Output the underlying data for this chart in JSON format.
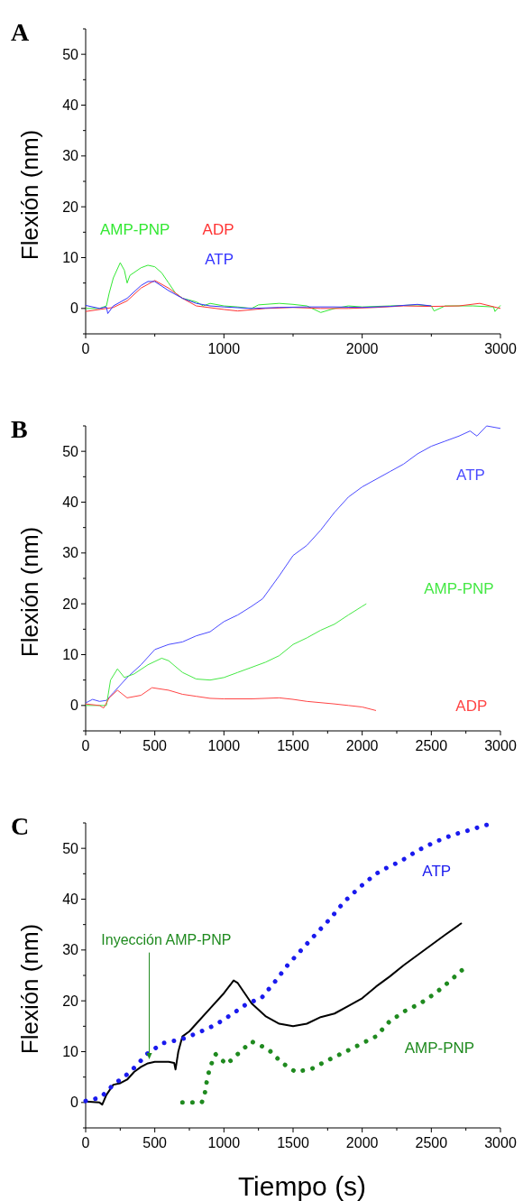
{
  "chart_data": [
    {
      "type": "line",
      "title": "A",
      "ylabel": "Flexión (nm)",
      "xlim": [
        0,
        3000
      ],
      "ylim": [
        -5,
        55
      ],
      "xticks": [
        0,
        {
          "value": 500,
          "label": null
        },
        1000,
        {
          "value": 1500,
          "label": null
        },
        2000,
        {
          "value": 2500,
          "label": null
        },
        3000
      ],
      "yticks": [
        {
          "value": -5,
          "label": null
        },
        0,
        {
          "value": 5,
          "label": null
        },
        10,
        {
          "value": 15,
          "label": null
        },
        20,
        {
          "value": 25,
          "label": null
        },
        30,
        {
          "value": 35,
          "label": null
        },
        40,
        {
          "value": 45,
          "label": null
        },
        50,
        {
          "value": 55,
          "label": null
        }
      ],
      "grid": false,
      "line_style": "solid",
      "marker": "none",
      "series": [
        {
          "name": "AMP-PNP",
          "color": "#33e833",
          "x": [
            0,
            100,
            150,
            170,
            200,
            250,
            280,
            300,
            320,
            400,
            450,
            500,
            550,
            600,
            650,
            700,
            800,
            850,
            900,
            1000,
            1100,
            1200,
            1250,
            1400,
            1500,
            1600,
            1700,
            1800,
            1900,
            2000,
            2200,
            2400,
            2500,
            2520,
            2600,
            2800,
            2950,
            2960,
            3000
          ],
          "values": [
            0,
            0,
            0.5,
            3,
            6,
            9,
            7.5,
            5,
            6.5,
            8,
            8.5,
            8.2,
            7,
            5,
            3,
            2,
            1.3,
            0.5,
            1,
            0.5,
            0.3,
            0,
            0.7,
            1,
            0.8,
            0.5,
            -0.8,
            0,
            0.5,
            0.3,
            0.5,
            0.7,
            0.5,
            -0.5,
            0.5,
            0.5,
            0.3,
            -0.6,
            0.6
          ]
        },
        {
          "name": "ADP",
          "color": "#ff3333",
          "x": [
            0,
            200,
            300,
            400,
            500,
            600,
            700,
            800,
            1000,
            1100,
            1300,
            1500,
            1700,
            1900,
            2100,
            2300,
            2500,
            2700,
            2850,
            3000
          ],
          "values": [
            -0.6,
            0.2,
            1.5,
            4,
            5.5,
            4,
            2,
            0.5,
            -0.2,
            -0.5,
            0,
            0.2,
            0,
            0,
            0.2,
            0.5,
            0.4,
            0.5,
            1,
            0
          ]
        },
        {
          "name": "ATP",
          "color": "#3333ff",
          "x": [
            0,
            100,
            150,
            160,
            200,
            300,
            400,
            450,
            500,
            600,
            700,
            800,
            900,
            1000,
            1200,
            1400,
            1600,
            1800,
            2000,
            2200,
            2400,
            2500
          ],
          "values": [
            0.6,
            0,
            0.3,
            -1,
            0.5,
            2,
            4.5,
            5.3,
            5.3,
            3.5,
            2,
            1,
            0.5,
            0.3,
            0,
            0.2,
            0.3,
            0.3,
            0.2,
            0.4,
            0.8,
            0.5
          ]
        }
      ]
    },
    {
      "type": "line",
      "title": "B",
      "ylabel": "Flexión (nm)",
      "xlim": [
        0,
        3000
      ],
      "ylim": [
        -5,
        55
      ],
      "xticks": [
        0,
        {
          "value": 250,
          "label": null
        },
        500,
        {
          "value": 750,
          "label": null
        },
        1000,
        {
          "value": 1250,
          "label": null
        },
        1500,
        {
          "value": 1750,
          "label": null
        },
        2000,
        {
          "value": 2250,
          "label": null
        },
        2500,
        {
          "value": 2750,
          "label": null
        },
        3000
      ],
      "yticks": [
        {
          "value": -5,
          "label": null
        },
        0,
        {
          "value": 5,
          "label": null
        },
        10,
        {
          "value": 15,
          "label": null
        },
        20,
        {
          "value": 25,
          "label": null
        },
        30,
        {
          "value": 35,
          "label": null
        },
        40,
        {
          "value": 45,
          "label": null
        },
        50,
        {
          "value": 55,
          "label": null
        }
      ],
      "grid": false,
      "line_style": "solid",
      "marker": "none",
      "series": [
        {
          "name": "ATP",
          "color": "#4a4aff",
          "x": [
            0,
            50,
            100,
            150,
            200,
            300,
            400,
            500,
            600,
            700,
            800,
            900,
            1000,
            1100,
            1200,
            1280,
            1400,
            1500,
            1600,
            1700,
            1800,
            1900,
            2000,
            2100,
            2200,
            2300,
            2400,
            2500,
            2600,
            2700,
            2780,
            2830,
            2900,
            3000
          ],
          "values": [
            0.5,
            1.2,
            0.8,
            1,
            2.5,
            5.5,
            8,
            11,
            12,
            12.5,
            13.7,
            14.5,
            16.5,
            17.8,
            19.5,
            21,
            25.5,
            29.5,
            31.5,
            34.5,
            38,
            41,
            43,
            44.5,
            46,
            47.5,
            49.5,
            51,
            52,
            53,
            54,
            53,
            55,
            54.5
          ]
        },
        {
          "name": "AMP-PNP",
          "color": "#44e844",
          "x": [
            0,
            150,
            180,
            230,
            280,
            350,
            450,
            550,
            600,
            700,
            800,
            900,
            1000,
            1100,
            1200,
            1300,
            1400,
            1500,
            1600,
            1700,
            1800,
            1900,
            2000,
            2030
          ],
          "values": [
            0,
            0,
            5,
            7.2,
            5.5,
            6.2,
            8,
            9.3,
            8.8,
            6.5,
            5.2,
            5,
            5.5,
            6.5,
            7.5,
            8.5,
            9.8,
            12,
            13.3,
            14.8,
            16,
            17.8,
            19.5,
            20
          ]
        },
        {
          "name": "ADP",
          "color": "#ff4444",
          "x": [
            0,
            100,
            130,
            170,
            230,
            300,
            400,
            480,
            600,
            700,
            800,
            900,
            1000,
            1200,
            1400,
            1500,
            1600,
            1800,
            1900,
            2000,
            2100
          ],
          "values": [
            0.3,
            0,
            -0.5,
            1.5,
            3,
            1.5,
            2,
            3.5,
            3,
            2.2,
            1.8,
            1.4,
            1.3,
            1.3,
            1.5,
            1.2,
            0.8,
            0.3,
            0,
            -0.3,
            -1
          ]
        }
      ]
    },
    {
      "type": "line",
      "title": "C",
      "xlabel": "Tiempo (s)",
      "ylabel": "Flexión (nm)",
      "xlim": [
        0,
        3000
      ],
      "ylim": [
        -5,
        55
      ],
      "xticks": [
        0,
        {
          "value": 250,
          "label": null
        },
        500,
        {
          "value": 750,
          "label": null
        },
        1000,
        {
          "value": 1250,
          "label": null
        },
        1500,
        {
          "value": 1750,
          "label": null
        },
        2000,
        {
          "value": 2250,
          "label": null
        },
        2500,
        {
          "value": 2750,
          "label": null
        },
        3000
      ],
      "yticks": [
        {
          "value": -5,
          "label": null
        },
        0,
        {
          "value": 5,
          "label": null
        },
        10,
        {
          "value": 15,
          "label": null
        },
        20,
        {
          "value": 25,
          "label": null
        },
        30,
        {
          "value": 35,
          "label": null
        },
        40,
        {
          "value": 45,
          "label": null
        },
        50,
        {
          "value": 55,
          "label": null
        }
      ],
      "grid": false,
      "marker": "none",
      "annotations": [
        {
          "text": "Inyección AMP-PNP",
          "x": 460,
          "y": 8.5
        }
      ],
      "series": [
        {
          "color": "#000000",
          "line_style": "solid",
          "x": [
            0,
            100,
            120,
            150,
            200,
            250,
            300,
            350,
            400,
            450,
            500,
            550,
            600,
            640,
            650,
            670,
            700,
            750,
            800,
            900,
            1000,
            1070,
            1100,
            1200,
            1300,
            1400,
            1500,
            1600,
            1700,
            1800,
            1900,
            2000,
            2100,
            2200,
            2300,
            2400,
            2500,
            2600,
            2720
          ],
          "values": [
            0.2,
            0,
            -0.4,
            1.5,
            3.5,
            3.8,
            4.5,
            6,
            7,
            7.7,
            8,
            8,
            8,
            7.8,
            6.5,
            10,
            13,
            14,
            15.5,
            18.5,
            21.5,
            24,
            23.5,
            19.5,
            17,
            15.5,
            15,
            15.5,
            16.8,
            17.5,
            19,
            20.5,
            22.8,
            24.8,
            27,
            29,
            31,
            33,
            35.3
          ]
        },
        {
          "name": "ATP",
          "color": "#1a1aee",
          "line_style": "dotted",
          "x": [
            0,
            110,
            200,
            290,
            370,
            440,
            560,
            690,
            820,
            940,
            1060,
            1170,
            1270,
            1370,
            1460,
            1560,
            1660,
            1770,
            1870,
            1980,
            2090,
            2150,
            2280,
            2410,
            2530,
            2660,
            2780,
            2880,
            2970
          ],
          "values": [
            0.3,
            1,
            3.5,
            5.3,
            7.3,
            9.5,
            11.7,
            12.4,
            13.8,
            15.3,
            17.4,
            19.5,
            20.5,
            23.8,
            27,
            30,
            33,
            36.2,
            39.5,
            42.3,
            44.8,
            45.8,
            47.5,
            49.7,
            51.3,
            52.7,
            53.6,
            54.5,
            55
          ]
        },
        {
          "name": "AMP-PNP",
          "color": "#1f8a1f",
          "line_style": "dotted",
          "x": [
            700,
            840,
            860,
            880,
            900,
            940,
            1020,
            1130,
            1200,
            1320,
            1420,
            1520,
            1640,
            1750,
            1880,
            1990,
            2100,
            2200,
            2310,
            2420,
            2530,
            2630,
            2720
          ],
          "values": [
            0,
            0,
            1.5,
            4.8,
            7,
            9.5,
            7.5,
            10.3,
            12,
            10.5,
            7.8,
            6,
            6.7,
            8.3,
            10,
            11.5,
            13,
            16,
            18,
            19.5,
            21.5,
            23.8,
            26
          ]
        }
      ]
    }
  ]
}
